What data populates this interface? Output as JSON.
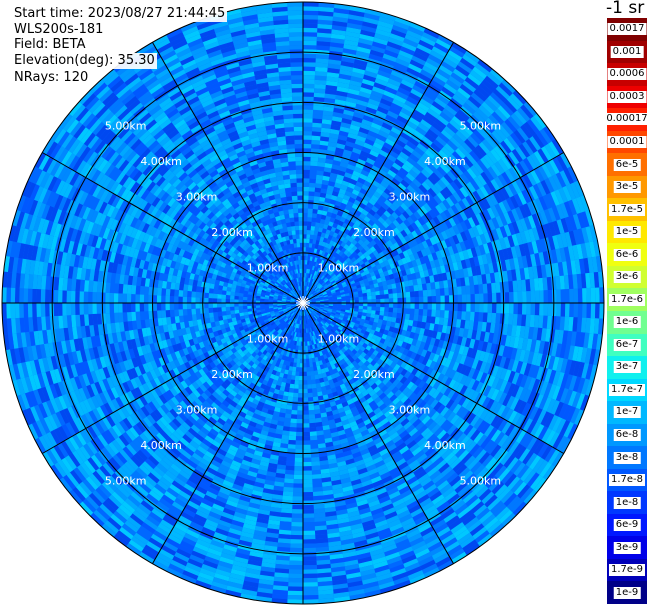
{
  "info": {
    "start_time": "Start time: 2023/08/27 21:44:45",
    "instrument": "WLS200s-181",
    "field": "Field: BETA",
    "elevation": "Elevation(deg): 35.30",
    "nrays": "NRays: 120"
  },
  "colorbar": {
    "units": "-1 sr",
    "entries": [
      {
        "label": "0.0017",
        "color": "#800000"
      },
      {
        "label": "0.001",
        "color": "#a00000"
      },
      {
        "label": "0.0006",
        "color": "#c80000"
      },
      {
        "label": "0.0003",
        "color": "#ee0000"
      },
      {
        "label": "0.00017",
        "color": "#ff2000"
      },
      {
        "label": "0.0001",
        "color": "#ff4800"
      },
      {
        "label": "6e-5",
        "color": "#ff7000"
      },
      {
        "label": "3e-5",
        "color": "#ff9800"
      },
      {
        "label": "1.7e-5",
        "color": "#ffc000"
      },
      {
        "label": "1e-5",
        "color": "#ffe800"
      },
      {
        "label": "6e-6",
        "color": "#f0ff10"
      },
      {
        "label": "3e-6",
        "color": "#d0ff30"
      },
      {
        "label": "1.7e-6",
        "color": "#a0ff60"
      },
      {
        "label": "1e-6",
        "color": "#70ff90"
      },
      {
        "label": "6e-7",
        "color": "#40ffc0"
      },
      {
        "label": "3e-7",
        "color": "#10f0ee"
      },
      {
        "label": "1.7e-7",
        "color": "#00d8ff"
      },
      {
        "label": "1e-7",
        "color": "#00b8ff"
      },
      {
        "label": "6e-8",
        "color": "#0098ff"
      },
      {
        "label": "3e-8",
        "color": "#0078ff"
      },
      {
        "label": "1.7e-8",
        "color": "#0058ff"
      },
      {
        "label": "1e-8",
        "color": "#0038ff"
      },
      {
        "label": "6e-9",
        "color": "#0018ff"
      },
      {
        "label": "3e-9",
        "color": "#0000e8"
      },
      {
        "label": "1.7e-9",
        "color": "#0000b8"
      },
      {
        "label": "1e-9",
        "color": "#000088"
      }
    ]
  },
  "chart_data": {
    "type": "heatmap",
    "projection": "polar-ppi",
    "field": "BETA",
    "nrays": 120,
    "elevation_deg": 35.3,
    "range_rings_km": [
      1.0,
      2.0,
      3.0,
      4.0,
      5.0
    ],
    "ring_labels": [
      "1.00km",
      "2.00km",
      "3.00km",
      "4.00km",
      "5.00km"
    ],
    "max_range_km": 6.0,
    "spokes_deg": [
      0,
      30,
      60,
      90,
      120,
      150,
      180,
      210,
      240,
      270,
      300,
      330
    ],
    "dominant_value_range": [
      1e-08,
      1.7e-07
    ],
    "grid": true,
    "legend_placement": "right"
  }
}
